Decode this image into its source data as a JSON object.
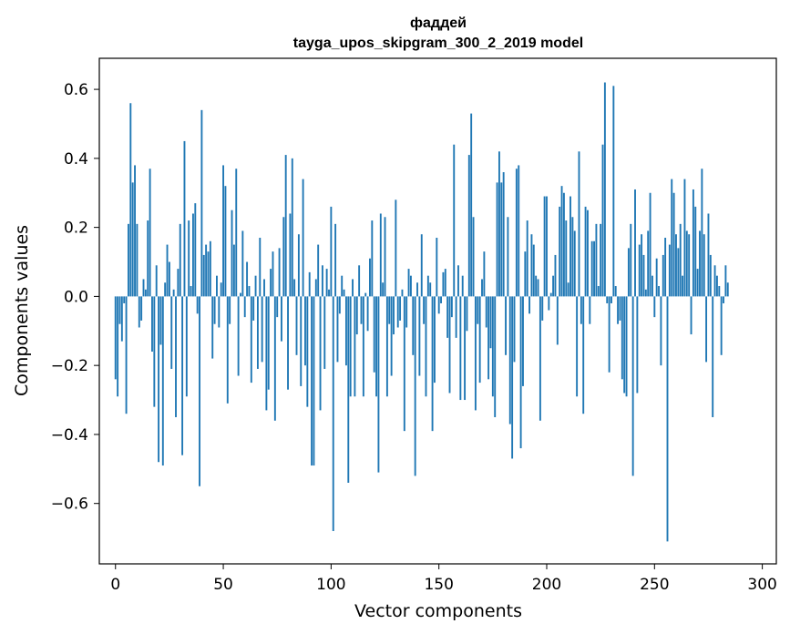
{
  "chart_data": {
    "type": "bar",
    "title": [
      "фаддей",
      "tayga_upos_skipgram_300_2_2019 model"
    ],
    "xlabel": "Vector components",
    "ylabel": "Components values",
    "xlim": [
      -7.5,
      306.5
    ],
    "ylim": [
      -0.775,
      0.69
    ],
    "xticks": [
      0,
      50,
      100,
      150,
      200,
      250,
      300
    ],
    "yticks": [
      -0.6,
      -0.4,
      -0.2,
      0.0,
      0.2,
      0.4,
      0.6
    ],
    "ytick_labels": [
      "−0.6",
      "−0.4",
      "−0.2",
      "0.0",
      "0.2",
      "0.4",
      "0.6"
    ],
    "grid": false,
    "bar_color": "#1f77b4",
    "values": [
      -0.24,
      -0.29,
      -0.08,
      -0.13,
      -0.02,
      -0.34,
      0.21,
      0.56,
      0.33,
      0.38,
      0.21,
      -0.09,
      -0.07,
      0.05,
      0.02,
      0.22,
      0.37,
      -0.16,
      -0.32,
      0.09,
      -0.48,
      -0.14,
      -0.49,
      0.04,
      0.15,
      0.1,
      -0.21,
      0.02,
      -0.35,
      0.08,
      0.21,
      -0.46,
      0.45,
      -0.29,
      0.22,
      0.03,
      0.24,
      0.27,
      -0.05,
      -0.55,
      0.54,
      0.12,
      0.15,
      0.13,
      0.16,
      -0.18,
      -0.08,
      0.06,
      -0.09,
      0.04,
      0.38,
      0.32,
      -0.31,
      -0.08,
      0.25,
      0.15,
      0.37,
      -0.23,
      0.01,
      0.19,
      -0.06,
      0.1,
      0.03,
      -0.25,
      -0.07,
      0.06,
      -0.21,
      0.17,
      -0.19,
      0.05,
      -0.33,
      -0.27,
      0.08,
      0.13,
      -0.36,
      -0.06,
      0.14,
      -0.13,
      0.23,
      0.41,
      -0.27,
      0.24,
      0.4,
      0.05,
      -0.17,
      0.18,
      -0.26,
      0.34,
      -0.2,
      -0.32,
      0.07,
      -0.49,
      -0.49,
      0.05,
      0.15,
      -0.33,
      0.09,
      -0.21,
      0.08,
      0.02,
      0.26,
      -0.68,
      0.21,
      -0.19,
      -0.05,
      0.06,
      0.02,
      -0.2,
      -0.54,
      -0.29,
      0.05,
      -0.29,
      -0.11,
      0.09,
      -0.08,
      -0.29,
      0.01,
      -0.1,
      0.11,
      0.22,
      -0.22,
      -0.29,
      -0.51,
      0.24,
      0.04,
      0.23,
      -0.29,
      -0.08,
      -0.23,
      -0.11,
      0.28,
      -0.09,
      -0.07,
      0.02,
      -0.39,
      -0.09,
      0.08,
      0.06,
      -0.17,
      -0.52,
      0.04,
      -0.23,
      0.18,
      -0.08,
      -0.29,
      0.06,
      0.04,
      -0.39,
      -0.25,
      0.17,
      -0.05,
      -0.02,
      0.07,
      0.08,
      -0.12,
      -0.28,
      -0.06,
      0.44,
      -0.12,
      0.09,
      -0.3,
      0.06,
      -0.3,
      -0.1,
      0.41,
      0.53,
      0.23,
      -0.33,
      -0.08,
      -0.25,
      0.05,
      0.13,
      -0.09,
      -0.24,
      -0.15,
      -0.29,
      -0.35,
      0.33,
      0.42,
      0.33,
      0.36,
      -0.17,
      0.23,
      -0.37,
      -0.47,
      -0.19,
      0.37,
      0.38,
      -0.44,
      -0.26,
      0.13,
      0.22,
      -0.05,
      0.18,
      0.15,
      0.06,
      0.05,
      -0.36,
      -0.07,
      0.29,
      0.29,
      -0.04,
      0.01,
      0.06,
      0.12,
      -0.14,
      0.26,
      0.32,
      0.3,
      0.22,
      0.04,
      0.29,
      0.23,
      0.19,
      -0.29,
      0.42,
      -0.08,
      -0.34,
      0.26,
      0.25,
      -0.08,
      0.16,
      0.16,
      0.21,
      0.03,
      0.21,
      0.44,
      0.62,
      -0.02,
      -0.22,
      -0.02,
      0.61,
      0.03,
      -0.08,
      -0.07,
      -0.24,
      -0.28,
      -0.29,
      0.14,
      0.21,
      -0.52,
      0.31,
      -0.28,
      0.15,
      0.18,
      0.12,
      0.02,
      0.19,
      0.3,
      0.06,
      -0.06,
      0.11,
      0.03,
      -0.2,
      0.12,
      0.17,
      -0.71,
      0.15,
      0.34,
      0.3,
      0.18,
      0.14,
      0.21,
      0.06,
      0.34,
      0.19,
      0.18,
      -0.11,
      0.31,
      0.26,
      0.08,
      0.19,
      0.37,
      0.18,
      -0.19,
      0.24,
      0.12,
      -0.35,
      0.09,
      0.06,
      0.03,
      -0.17,
      -0.02,
      0.09,
      0.04
    ]
  }
}
